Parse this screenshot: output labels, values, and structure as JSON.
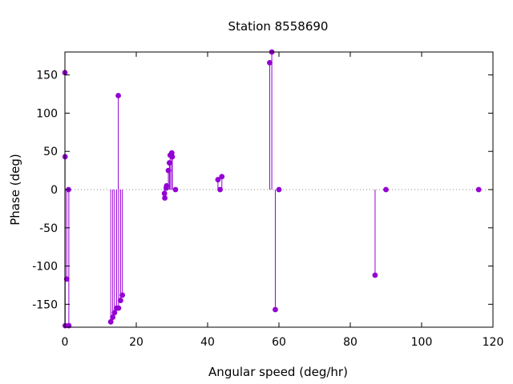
{
  "chart_data": {
    "type": "scatter",
    "style": "impulses-with-points",
    "title": "Station 8558690",
    "xlabel": "Angular speed (deg/hr)",
    "ylabel": "Phase (deg)",
    "xlim": [
      0,
      120
    ],
    "ylim": [
      -180,
      180
    ],
    "xticks": [
      0,
      20,
      40,
      60,
      80,
      100,
      120
    ],
    "yticks": [
      -150,
      -100,
      -50,
      0,
      50,
      100,
      150
    ],
    "zero_line": "dotted",
    "grid": false,
    "color": "#9400d3",
    "points": [
      {
        "x": 0.0,
        "y": 153
      },
      {
        "x": 0.04,
        "y": 43
      },
      {
        "x": 0.08,
        "y": -178
      },
      {
        "x": 0.5,
        "y": -117
      },
      {
        "x": 1.0,
        "y": 0
      },
      {
        "x": 1.1,
        "y": -178
      },
      {
        "x": 12.85,
        "y": -173
      },
      {
        "x": 13.4,
        "y": -167
      },
      {
        "x": 13.9,
        "y": -161
      },
      {
        "x": 14.5,
        "y": -155
      },
      {
        "x": 14.96,
        "y": 123
      },
      {
        "x": 15.04,
        "y": -155
      },
      {
        "x": 15.6,
        "y": -145
      },
      {
        "x": 16.1,
        "y": -138
      },
      {
        "x": 27.9,
        "y": -5
      },
      {
        "x": 28.0,
        "y": -11
      },
      {
        "x": 28.4,
        "y": 2
      },
      {
        "x": 28.5,
        "y": 5
      },
      {
        "x": 29.0,
        "y": 25
      },
      {
        "x": 29.3,
        "y": 35
      },
      {
        "x": 29.5,
        "y": 45
      },
      {
        "x": 29.96,
        "y": 48
      },
      {
        "x": 30.1,
        "y": 43
      },
      {
        "x": 31.0,
        "y": 0
      },
      {
        "x": 42.9,
        "y": 13
      },
      {
        "x": 43.5,
        "y": 0
      },
      {
        "x": 44.0,
        "y": 17
      },
      {
        "x": 57.4,
        "y": 166
      },
      {
        "x": 58.0,
        "y": 180
      },
      {
        "x": 58.98,
        "y": -157
      },
      {
        "x": 60.0,
        "y": 0
      },
      {
        "x": 86.95,
        "y": -112
      },
      {
        "x": 90.0,
        "y": 0
      },
      {
        "x": 116.0,
        "y": 0
      }
    ]
  }
}
